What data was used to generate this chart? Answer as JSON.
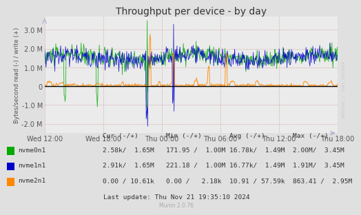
{
  "title": "Throughput per device - by day",
  "ylabel": "Bytes/second read (-) / write (+)",
  "background_color": "#e0e0e0",
  "plot_background": "#ebebeb",
  "grid_color_major": "#cc8888",
  "grid_color_minor": "#ddbbbb",
  "zero_line_color": "#000000",
  "ylim": [
    -2500000.0,
    3700000.0
  ],
  "yticks": [
    -2000000,
    -1000000,
    0,
    1000000,
    2000000,
    3000000
  ],
  "ytick_labels": [
    "-2.0 M",
    "-1.0 M",
    "0",
    "1.0 M",
    "2.0 M",
    "3.0 M"
  ],
  "xtick_labels": [
    "Wed 12:00",
    "Wed 18:00",
    "Thu 00:00",
    "Thu 06:00",
    "Thu 12:00",
    "Thu 18:00"
  ],
  "series": [
    {
      "name": "nvme0n1",
      "color": "#00aa00"
    },
    {
      "name": "nvme1n1",
      "color": "#0000cc"
    },
    {
      "name": "nvme2n1",
      "color": "#ff8800"
    }
  ],
  "last_update": "Last update: Thu Nov 21 19:35:10 2024",
  "munin_version": "Munin 2.0.76",
  "rrdtool_label": "RRDTOOL / TOBI OETIKER",
  "title_fontsize": 10,
  "axis_fontsize": 7,
  "legend_fontsize": 6.8,
  "num_points": 600,
  "legend_data": [
    {
      "name": "nvme0n1",
      "color": "#00aa00",
      "cur": "2.58k/  1.65M",
      "min": "171.95 /  1.00M",
      "avg": "16.78k/  1.49M",
      "max": "2.00M/  3.45M"
    },
    {
      "name": "nvme1n1",
      "color": "#0000cc",
      "cur": "2.91k/  1.65M",
      "min": "221.18 /  1.00M",
      "avg": "16.77k/  1.49M",
      "max": "1.91M/  3.45M"
    },
    {
      "name": "nvme2n1",
      "color": "#ff8800",
      "cur": "0.00 / 10.61k",
      "min": "0.00 /   2.18k",
      "avg": "10.91 / 57.59k",
      "max": "863.41 /  2.95M"
    }
  ]
}
